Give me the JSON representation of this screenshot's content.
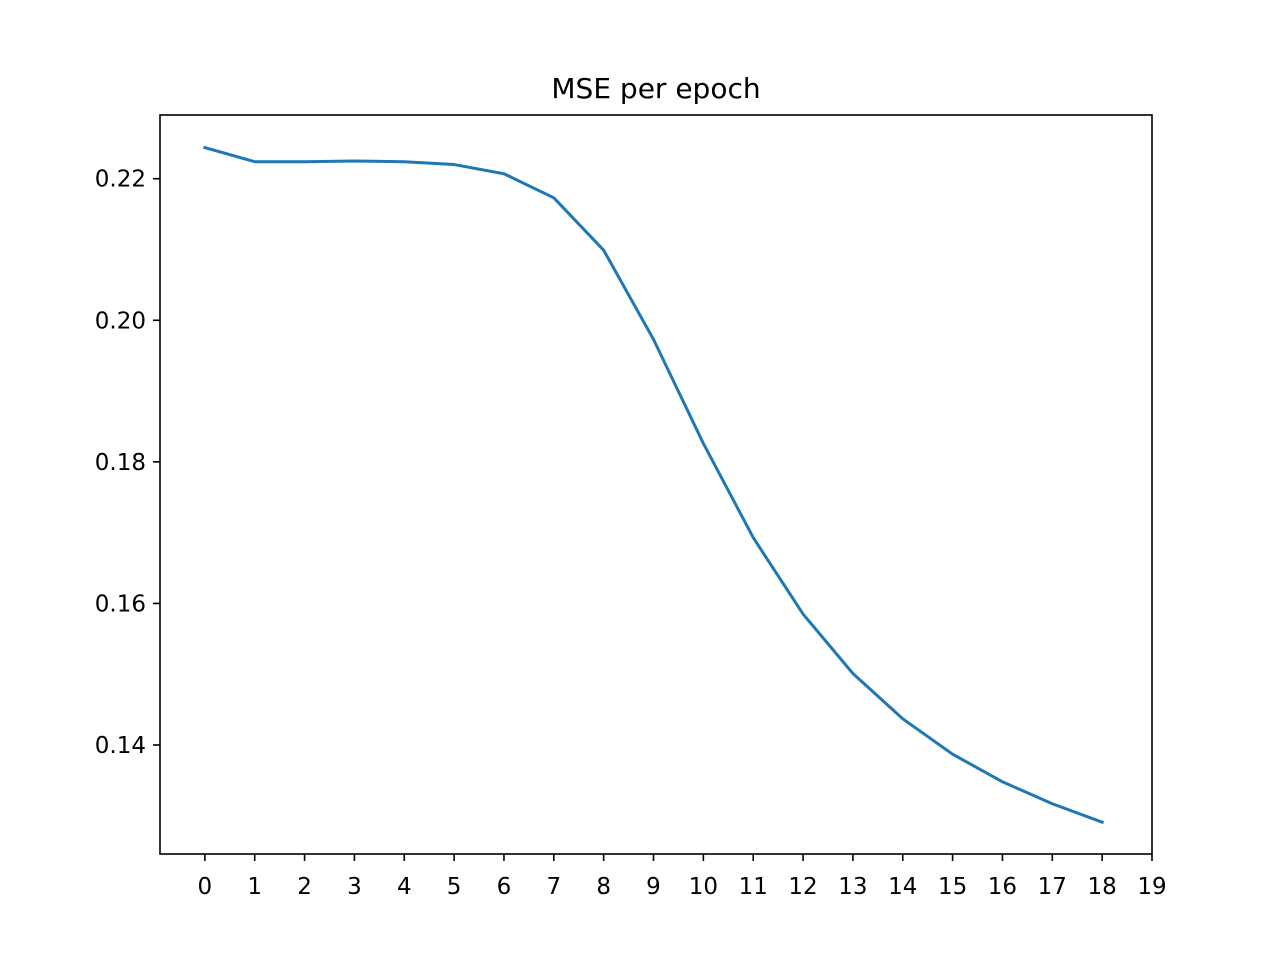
{
  "chart_data": {
    "type": "line",
    "title": "MSE per epoch",
    "xlabel": "",
    "ylabel": "",
    "x": [
      0,
      1,
      2,
      3,
      4,
      5,
      6,
      7,
      8,
      9,
      10,
      11,
      12,
      13,
      14,
      15,
      16,
      17,
      18
    ],
    "series": [
      {
        "values": [
          0.2244,
          0.2224,
          0.2224,
          0.2225,
          0.2224,
          0.222,
          0.2207,
          0.2173,
          0.2099,
          0.1973,
          0.1826,
          0.1693,
          0.1585,
          0.1501,
          0.1437,
          0.1387,
          0.1348,
          0.1317,
          0.1291
        ],
        "color": "#1f77b4"
      }
    ],
    "xticks": [
      "0",
      "1",
      "2",
      "3",
      "4",
      "5",
      "6",
      "7",
      "8",
      "9",
      "10",
      "11",
      "12",
      "13",
      "14",
      "15",
      "16",
      "17",
      "18",
      "19"
    ],
    "yticks": [
      "0.14",
      "0.16",
      "0.18",
      "0.20",
      "0.22"
    ],
    "xlim": [
      -0.9,
      19
    ],
    "ylim": [
      0.1246,
      0.229
    ],
    "grid": false,
    "legend": "none"
  }
}
